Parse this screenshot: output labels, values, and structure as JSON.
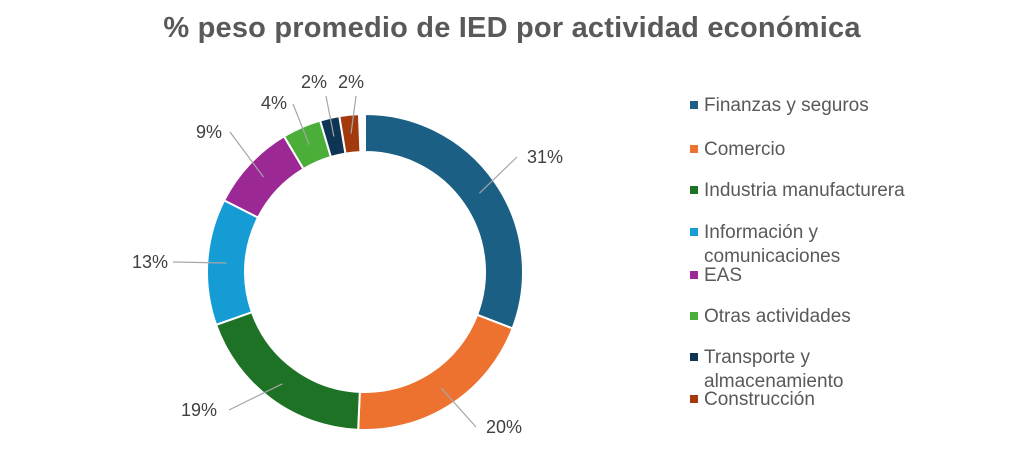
{
  "chart_data": {
    "type": "pie",
    "subtype": "donut",
    "title": "% peso promedio de IED por actividad económica",
    "legend_position": "right",
    "series": [
      {
        "name": "Finanzas y seguros",
        "value": 31,
        "label": "31%",
        "color": "#1B5F84"
      },
      {
        "name": "Comercio",
        "value": 20,
        "label": "20%",
        "color": "#ED7230"
      },
      {
        "name": "Industria manufacturera",
        "value": 19,
        "label": "19%",
        "color": "#1E7225"
      },
      {
        "name": "Información y comunicaciones",
        "value": 13,
        "label": "13%",
        "color": "#159CD5"
      },
      {
        "name": "EAS",
        "value": 9,
        "label": "9%",
        "color": "#9C2896"
      },
      {
        "name": "Otras actividades",
        "value": 4,
        "label": "4%",
        "color": "#4AAE38"
      },
      {
        "name": "Transporte y almacenamiento",
        "value": 2,
        "label": "2%",
        "color": "#0E3553"
      },
      {
        "name": "Construcción",
        "value": 2,
        "label": "2%",
        "color": "#A33A0E"
      }
    ]
  }
}
